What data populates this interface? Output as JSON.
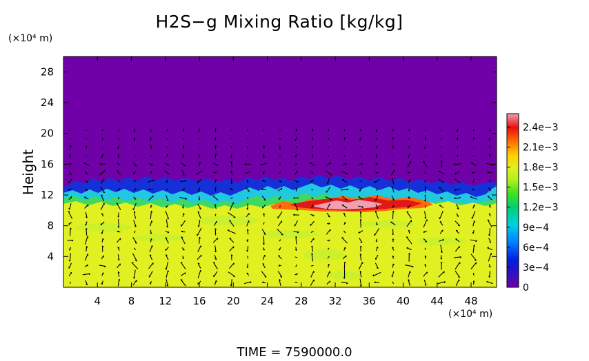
{
  "chart_data": {
    "type": "heatmap",
    "title": "H2S−g Mixing Ratio [kg/kg]",
    "ylabel": "Height",
    "x_unit": "(×10⁴ m)",
    "y_unit": "(×10⁴ m)",
    "xlim": [
      0,
      51
    ],
    "ylim": [
      0,
      30
    ],
    "x_ticks": [
      "4",
      "8",
      "12",
      "16",
      "20",
      "24",
      "28",
      "32",
      "36",
      "40",
      "44",
      "48"
    ],
    "x_tick_values": [
      4,
      8,
      12,
      16,
      20,
      24,
      28,
      32,
      36,
      40,
      44,
      48
    ],
    "y_ticks": [
      "4",
      "8",
      "12",
      "16",
      "20",
      "24",
      "28"
    ],
    "y_tick_values": [
      4,
      8,
      12,
      16,
      20,
      24,
      28
    ],
    "colorbar": {
      "labels": [
        "2.4e−3",
        "2.1e−3",
        "1.8e−3",
        "1.5e−3",
        "1.2e−3",
        "9e−4",
        "6e−4",
        "3e−4",
        "0"
      ],
      "values": [
        0.0024,
        0.0021,
        0.0018,
        0.0015,
        0.0012,
        0.0009,
        0.0006,
        0.0003,
        0
      ],
      "range": [
        0,
        0.0026
      ]
    },
    "field_description": {
      "lower_layer_value": 0.0018,
      "lower_layer_top_height": 11,
      "upper_layer_value": 0,
      "interface_height": 12.5,
      "peak_value": 0.0025,
      "peak_x_range": [
        25,
        43
      ],
      "peak_height_range": [
        9.5,
        11.5
      ]
    },
    "vectors": "velocity arrows overlaid on grid",
    "footer": "TIME  =  7590000.0"
  },
  "colors": {
    "background": "#ffffff",
    "upper": "#7000a8",
    "lower": "#e0f020",
    "peak": "#f0a0b0"
  }
}
